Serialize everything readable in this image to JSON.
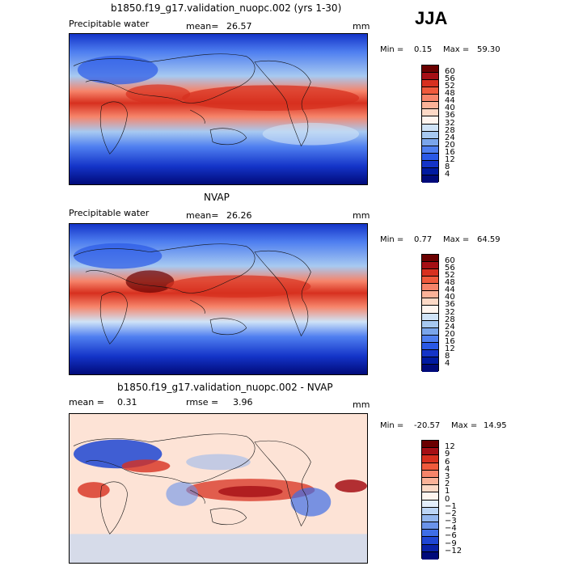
{
  "season": "JJA",
  "panels": [
    {
      "id": "model",
      "title": "b1850.f19_g17.validation_nuopc.002 (yrs 1-30)",
      "field": "Precipitable water",
      "mean_label": "mean=",
      "mean_value": "26.57",
      "units": "mm",
      "min_label": "Min =",
      "min_value": "0.15",
      "max_label": "Max =",
      "max_value": "59.30",
      "colorbar_ticks": [
        "60",
        "56",
        "52",
        "48",
        "44",
        "40",
        "36",
        "32",
        "28",
        "24",
        "20",
        "16",
        "12",
        "8",
        "4"
      ],
      "colors": [
        "#6b0000",
        "#a50f15",
        "#d7301f",
        "#ef5a3c",
        "#f6846a",
        "#fbb298",
        "#fdd9c6",
        "#fff5ef",
        "#cfe3f7",
        "#a7c9f1",
        "#7aa5eb",
        "#4f7ff0",
        "#2a59e6",
        "#1434c8",
        "#001aa0",
        "#000a7a"
      ]
    },
    {
      "id": "obs",
      "title": "NVAP",
      "field": "Precipitable water",
      "mean_label": "mean=",
      "mean_value": "26.26",
      "units": "mm",
      "min_label": "Min =",
      "min_value": "0.77",
      "max_label": "Max =",
      "max_value": "64.59",
      "colorbar_ticks": [
        "60",
        "56",
        "52",
        "48",
        "44",
        "40",
        "36",
        "32",
        "28",
        "24",
        "20",
        "16",
        "12",
        "8",
        "4"
      ],
      "colors": [
        "#6b0000",
        "#a50f15",
        "#d7301f",
        "#ef5a3c",
        "#f6846a",
        "#fbb298",
        "#fdd9c6",
        "#fff5ef",
        "#cfe3f7",
        "#a7c9f1",
        "#7aa5eb",
        "#4f7ff0",
        "#2a59e6",
        "#1434c8",
        "#001aa0",
        "#000a7a"
      ]
    },
    {
      "id": "diff",
      "title": "b1850.f19_g17.validation_nuopc.002 - NVAP",
      "mean_label": "mean =",
      "mean_value": "0.31",
      "rmse_label": "rmse =",
      "rmse_value": "3.96",
      "units": "mm",
      "min_label": "Min =",
      "min_value": "-20.57",
      "max_label": "Max =",
      "max_value": "14.95",
      "colorbar_ticks": [
        "12",
        "9",
        "6",
        "4",
        "3",
        "2",
        "1",
        "0",
        "−1",
        "−2",
        "−3",
        "−4",
        "−6",
        "−9",
        "−12"
      ],
      "colors": [
        "#6b0000",
        "#a50f15",
        "#d7301f",
        "#ef5a3c",
        "#f6846a",
        "#fbb298",
        "#fdd9c6",
        "#fff5ef",
        "#e3eefb",
        "#bcd5f5",
        "#93b6ee",
        "#6a93ea",
        "#3e6ee6",
        "#1f46d2",
        "#0a22a8",
        "#000a7a"
      ]
    }
  ]
}
